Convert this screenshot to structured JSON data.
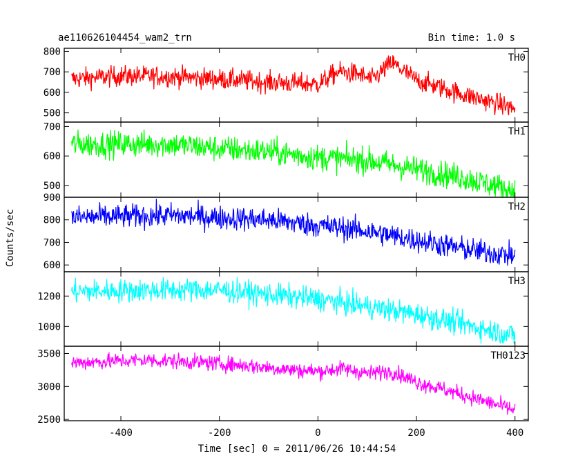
{
  "chart_data": {
    "type": "line",
    "title": "ae110626104454_wam2_trn",
    "bin_time": "Bin time: 1.0 s",
    "xlabel": "Time [sec] 0 = 2011/06/26 10:44:54",
    "ylabel": "Counts/sec",
    "xlim": [
      -515,
      427
    ],
    "data_x_range": [
      -500,
      400
    ],
    "xticks": [
      -400,
      -200,
      0,
      200,
      400
    ],
    "panels": [
      {
        "name": "TH0",
        "color": "#ff0000",
        "ylim": [
          455,
          815
        ],
        "yticks": [
          500,
          600,
          700,
          800
        ],
        "noise": 36,
        "trend": [
          [
            -500,
            665
          ],
          [
            -400,
            680
          ],
          [
            -300,
            678
          ],
          [
            -200,
            665
          ],
          [
            -100,
            650
          ],
          [
            0,
            640
          ],
          [
            40,
            700
          ],
          [
            80,
            690
          ],
          [
            110,
            660
          ],
          [
            150,
            745
          ],
          [
            200,
            660
          ],
          [
            280,
            600
          ],
          [
            340,
            560
          ],
          [
            400,
            520
          ]
        ]
      },
      {
        "name": "TH1",
        "color": "#00ff00",
        "ylim": [
          460,
          715
        ],
        "yticks": [
          500,
          600,
          700
        ],
        "noise": 32,
        "trend": [
          [
            -500,
            640
          ],
          [
            -300,
            640
          ],
          [
            -200,
            625
          ],
          [
            -100,
            615
          ],
          [
            0,
            595
          ],
          [
            100,
            585
          ],
          [
            200,
            555
          ],
          [
            300,
            525
          ],
          [
            400,
            480
          ]
        ]
      },
      {
        "name": "TH2",
        "color": "#0000ff",
        "ylim": [
          570,
          900
        ],
        "yticks": [
          600,
          700,
          800,
          900
        ],
        "noise": 38,
        "trend": [
          [
            -500,
            810
          ],
          [
            -300,
            820
          ],
          [
            -200,
            810
          ],
          [
            -100,
            800
          ],
          [
            0,
            775
          ],
          [
            100,
            750
          ],
          [
            200,
            710
          ],
          [
            300,
            670
          ],
          [
            400,
            640
          ]
        ]
      },
      {
        "name": "TH3",
        "color": "#00ffff",
        "ylim": [
          870,
          1360
        ],
        "yticks": [
          1000,
          1200
        ],
        "noise": 55,
        "trend": [
          [
            -500,
            1230
          ],
          [
            -300,
            1240
          ],
          [
            -200,
            1240
          ],
          [
            -100,
            1210
          ],
          [
            0,
            1180
          ],
          [
            100,
            1130
          ],
          [
            200,
            1080
          ],
          [
            300,
            1010
          ],
          [
            400,
            940
          ]
        ]
      },
      {
        "name": "TH0123",
        "color": "#ff00ff",
        "ylim": [
          2480,
          3610
        ],
        "yticks": [
          2500,
          3000,
          3500
        ],
        "noise": 85,
        "trend": [
          [
            -500,
            3360
          ],
          [
            -350,
            3400
          ],
          [
            -250,
            3370
          ],
          [
            -150,
            3320
          ],
          [
            -50,
            3250
          ],
          [
            0,
            3230
          ],
          [
            50,
            3270
          ],
          [
            100,
            3200
          ],
          [
            150,
            3230
          ],
          [
            200,
            3070
          ],
          [
            300,
            2860
          ],
          [
            400,
            2640
          ]
        ]
      }
    ]
  }
}
